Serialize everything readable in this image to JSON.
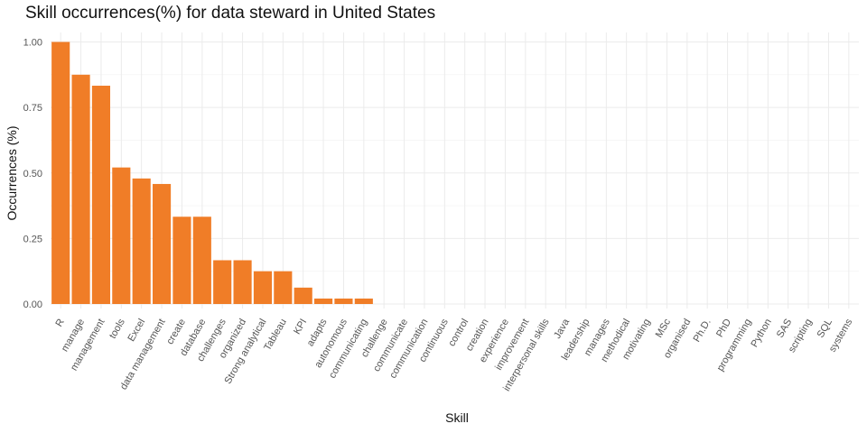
{
  "chart_data": {
    "type": "bar",
    "title": "Skill occurrences(%) for data steward in United States",
    "xlabel": "Skill",
    "ylabel": "Occurrences (%)",
    "ylim": [
      0,
      1.05
    ],
    "yticks": [
      "0.00",
      "0.25",
      "0.50",
      "0.75",
      "1.00"
    ],
    "bar_color": "#f07d27",
    "grid": true,
    "categories": [
      "R",
      "manage",
      "management",
      "tools",
      "Excel",
      "data management",
      "create",
      "database",
      "challenges",
      "organized",
      "Strong analytical",
      "Tableau",
      "KPI",
      "adapts",
      "autonomous",
      "communicating",
      "challenge",
      "communicate",
      "communication",
      "continuous",
      "control",
      "creation",
      "experience",
      "improvement",
      "interpersonal skills",
      "Java",
      "leadership",
      "manages",
      "methodical",
      "motivating",
      "MSc",
      "organised",
      "Ph.D.",
      "PhD",
      "programming",
      "Python",
      "SAS",
      "scripting",
      "SQL",
      "systems"
    ],
    "values": [
      1.0,
      0.875,
      0.833,
      0.521,
      0.479,
      0.458,
      0.333,
      0.333,
      0.167,
      0.167,
      0.125,
      0.125,
      0.0625,
      0.0208,
      0.0208,
      0.0208,
      0,
      0,
      0,
      0,
      0,
      0,
      0,
      0,
      0,
      0,
      0,
      0,
      0,
      0,
      0,
      0,
      0,
      0,
      0,
      0,
      0,
      0,
      0,
      0
    ]
  }
}
